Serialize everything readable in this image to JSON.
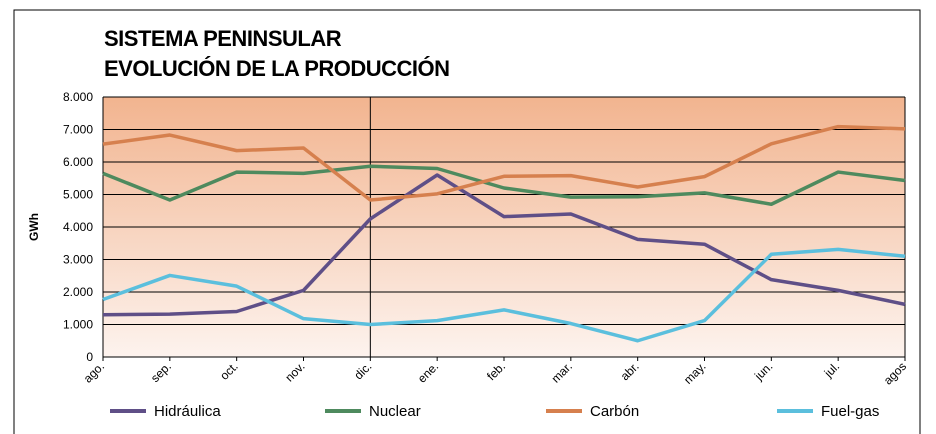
{
  "chart_data": {
    "type": "line",
    "title": [
      "SISTEMA PENINSULAR",
      "EVOLUCIÓN DE LA PRODUCCIÓN"
    ],
    "y_label": "GWh",
    "categories": [
      "ago.",
      "sep.",
      "oct.",
      "nov.",
      "dic.",
      "ene.",
      "feb.",
      "mar.",
      "abr.",
      "may.",
      "jun.",
      "jul.",
      "agos"
    ],
    "series": [
      {
        "name": "Hidráulica",
        "color": "#5f4f87",
        "values": [
          1300,
          1320,
          1400,
          2050,
          4250,
          5600,
          4320,
          4400,
          3620,
          3470,
          2380,
          2050,
          1620
        ]
      },
      {
        "name": "Nuclear",
        "color": "#4e8a5e",
        "values": [
          5650,
          4830,
          5690,
          5650,
          5870,
          5800,
          5200,
          4920,
          4930,
          5050,
          4700,
          5690,
          5430
        ]
      },
      {
        "name": "Carbón",
        "color": "#d6804e",
        "values": [
          6550,
          6830,
          6350,
          6430,
          4830,
          5020,
          5560,
          5580,
          5230,
          5550,
          6560,
          7090,
          7020
        ]
      },
      {
        "name": "Fuel-gas",
        "color": "#5bbfdd",
        "values": [
          1770,
          2510,
          2180,
          1180,
          1000,
          1120,
          1450,
          1030,
          500,
          1120,
          3160,
          3310,
          3100
        ]
      }
    ],
    "ylim": [
      0,
      8000
    ],
    "yticks": [
      0,
      {
        "value": 1000,
        "label": "1.000"
      },
      {
        "value": 2000,
        "label": "2.000"
      },
      {
        "value": 3000,
        "label": "3.000"
      },
      {
        "value": 4000,
        "label": "4.000"
      },
      {
        "value": 5000,
        "label": "5.000"
      },
      {
        "value": 6000,
        "label": "6.000"
      },
      {
        "value": 7000,
        "label": "7.000"
      },
      {
        "value": 8000,
        "label": "8.000"
      }
    ],
    "grid": true
  }
}
